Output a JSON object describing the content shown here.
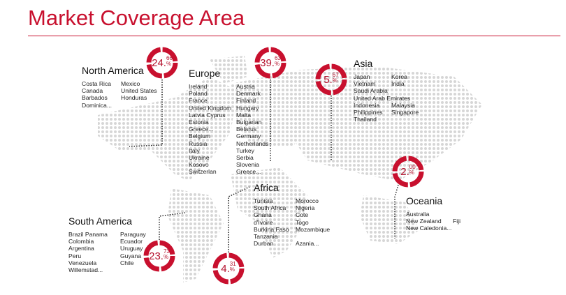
{
  "title": "Market Coverage Area",
  "accent_color": "#c8102e",
  "regions": {
    "north_america": {
      "name": "North America",
      "pct_int": "24.",
      "pct_frac": "66",
      "pct_sign": "%",
      "percent": 24.66,
      "col1": [
        "Costa Rica",
        "Canada",
        "Barbados",
        "Dominica..."
      ],
      "col2": [
        "Mexico",
        "United States",
        "Honduras"
      ]
    },
    "europe": {
      "name": "Europe",
      "pct_int": "39.",
      "pct_frac": "63",
      "pct_sign": "%",
      "percent": 39.63,
      "col1": [
        "Ireland",
        "Poland",
        "France",
        "United Kingdom",
        "Latvia Cyprus",
        "Estonia",
        "Greece...",
        "Belgium",
        "Russia",
        "Italy",
        "Ukraine",
        "Kosovo",
        "Switzerlan"
      ],
      "col2": [
        "Austria",
        "Denmark",
        "Finland",
        "Hungary",
        "Malta",
        "Bulgarian",
        "Belarus",
        "Germany",
        "Netherlands",
        "Turkey",
        "Serbia",
        "Slovenia",
        "Greece..."
      ]
    },
    "asia": {
      "name": "Asia",
      "pct_int": "5.",
      "pct_frac": "67",
      "pct_sign": "%",
      "percent": 5.67,
      "col1": [
        "Japan",
        "Vietnam",
        "Saudi Arabia",
        "United Arab Emirates",
        "Indonesia",
        "Philippines",
        "Thailand"
      ],
      "col2": [
        "Korea",
        "India",
        "",
        "",
        "Malaysia",
        "Singapore"
      ]
    },
    "oceania": {
      "name": "Oceania",
      "pct_int": "2.",
      "pct_frac": "00",
      "pct_sign": "%",
      "percent": 2.0,
      "col1": [
        "Australia",
        "New Zealand",
        "New Caledonia..."
      ],
      "col2": [
        "",
        "Fiji"
      ]
    },
    "south_america": {
      "name": "South America",
      "pct_int": "23.",
      "pct_frac": "73",
      "pct_sign": "%",
      "percent": 23.73,
      "col1": [
        "Brazil  Panama",
        "Colombia",
        "Argentina",
        "Peru",
        "Venezuela",
        "Willemstad..."
      ],
      "col2": [
        "Paraguay",
        "Ecuador",
        "Uruguay",
        "Guyana",
        "Chile"
      ]
    },
    "africa": {
      "name": "Africa",
      "pct_int": "4.",
      "pct_frac": "31",
      "pct_sign": "%",
      "percent": 4.31,
      "col1": [
        "Tunisia",
        "South Africa",
        "Ghana",
        "d'Ivoire",
        "Burkina Faso",
        "Tanzania",
        "Durban"
      ],
      "col2": [
        "Morocco",
        "Nigeria",
        "Cote",
        "Togo",
        "Mozambique",
        "",
        "Azania..."
      ]
    }
  }
}
